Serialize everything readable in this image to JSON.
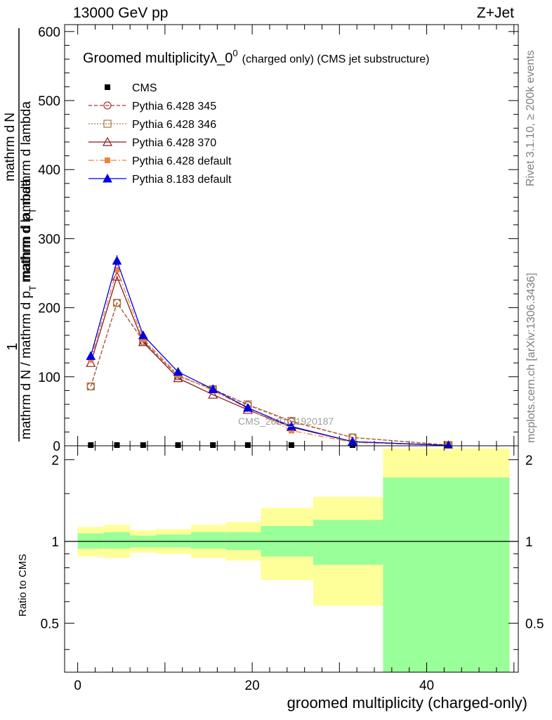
{
  "header": {
    "energy": "13000 GeV pp",
    "process": "Z+Jet"
  },
  "side_labels": {
    "rivet": "Rivet 3.1.10, ≥ 200k events",
    "mcplots": "mcplots.cern.ch [arXiv:1306.3436]"
  },
  "watermark": "CMS_2021_I1920187",
  "chart_data": [
    {
      "type": "line",
      "title": "Groomed multiplicity λ_0⁰ (charged only) (CMS jet substructure)",
      "title_main": "Groomed multiplicityλ_0",
      "title_sup": "0",
      "title_rest": "(charged only) (CMS jet substructure)",
      "ylabel_parts": [
        "1",
        "mathrm d N / mathrm d p",
        "T",
        "mathrm d lambda",
        "mathrm d",
        "N",
        "mathrm d p",
        "T",
        "mathrm d lambda"
      ],
      "xlim": [
        -1.5,
        50.5
      ],
      "ylim": [
        0,
        610
      ],
      "yticks": [
        0,
        100,
        200,
        300,
        400,
        500,
        600
      ],
      "x": [
        1.5,
        4.5,
        7.5,
        11.5,
        15.5,
        19.5,
        24.5,
        31.5,
        42.5
      ],
      "series": [
        {
          "name": "CMS",
          "color": "#000000",
          "marker": "square-filled",
          "dash": "none",
          "values": [
            0,
            0,
            0,
            0,
            0,
            0,
            0,
            0,
            0
          ]
        },
        {
          "name": "Pythia 6.428 345",
          "color": "#b22f3a",
          "marker": "circle-open",
          "dash": "5,3",
          "values": [
            86,
            207,
            152,
            101,
            82,
            59,
            35,
            12,
            1
          ]
        },
        {
          "name": "Pythia 6.428 346",
          "color": "#a07a3c",
          "marker": "square-open",
          "dash": "2,2",
          "values": [
            86,
            207,
            152,
            101,
            82,
            60,
            36,
            12,
            1
          ]
        },
        {
          "name": "Pythia 6.428 370",
          "color": "#8b1a1a",
          "marker": "triangle-open",
          "dash": "none",
          "values": [
            120,
            245,
            150,
            98,
            74,
            52,
            27,
            6,
            0.5
          ]
        },
        {
          "name": "Pythia 6.428 default",
          "color": "#f08040",
          "marker": "square-filled",
          "dash": "8,3,2,3",
          "values": [
            125,
            255,
            155,
            103,
            80,
            54,
            22,
            5,
            0.5
          ]
        },
        {
          "name": "Pythia 8.183 default",
          "color": "#0000e0",
          "marker": "triangle-filled",
          "dash": "none",
          "values": [
            130,
            268,
            160,
            107,
            82,
            55,
            28,
            6,
            0.5
          ]
        }
      ],
      "errors": [
        {
          "series": "Pythia 8.183 default",
          "x": 4.5,
          "low": 261,
          "high": 276
        }
      ]
    },
    {
      "type": "area",
      "ylabel": "Ratio to CMS",
      "xlabel": "groomed multiplicity (charged-only)",
      "xlim": [
        -1.5,
        50.5
      ],
      "ylim": [
        0.33,
        2.25
      ],
      "xticks": [
        0,
        20,
        40
      ],
      "yticks": [
        0.5,
        1,
        2
      ],
      "bins": [
        {
          "lo": 0,
          "hi": 3,
          "stat_lo": 0.94,
          "stat_hi": 1.07,
          "tot_lo": 0.88,
          "tot_hi": 1.13
        },
        {
          "lo": 3,
          "hi": 6,
          "stat_lo": 0.94,
          "stat_hi": 1.08,
          "tot_lo": 0.87,
          "tot_hi": 1.15
        },
        {
          "lo": 6,
          "hi": 9,
          "stat_lo": 0.95,
          "stat_hi": 1.05,
          "tot_lo": 0.91,
          "tot_hi": 1.1
        },
        {
          "lo": 9,
          "hi": 13,
          "stat_lo": 0.95,
          "stat_hi": 1.06,
          "tot_lo": 0.9,
          "tot_hi": 1.11
        },
        {
          "lo": 13,
          "hi": 17,
          "stat_lo": 0.94,
          "stat_hi": 1.08,
          "tot_lo": 0.87,
          "tot_hi": 1.15
        },
        {
          "lo": 17,
          "hi": 21,
          "stat_lo": 0.93,
          "stat_hi": 1.08,
          "tot_lo": 0.85,
          "tot_hi": 1.18
        },
        {
          "lo": 21,
          "hi": 27,
          "stat_lo": 0.88,
          "stat_hi": 1.14,
          "tot_lo": 0.72,
          "tot_hi": 1.33
        },
        {
          "lo": 27,
          "hi": 35,
          "stat_lo": 0.82,
          "stat_hi": 1.2,
          "tot_lo": 0.58,
          "tot_hi": 1.46
        },
        {
          "lo": 35,
          "hi": 49.5,
          "stat_lo": 0.33,
          "stat_hi": 1.72,
          "tot_lo": 0.33,
          "tot_hi": 2.2
        }
      ],
      "stat_color": "#99ff99",
      "total_color": "#ffff99",
      "reference": 1
    }
  ]
}
